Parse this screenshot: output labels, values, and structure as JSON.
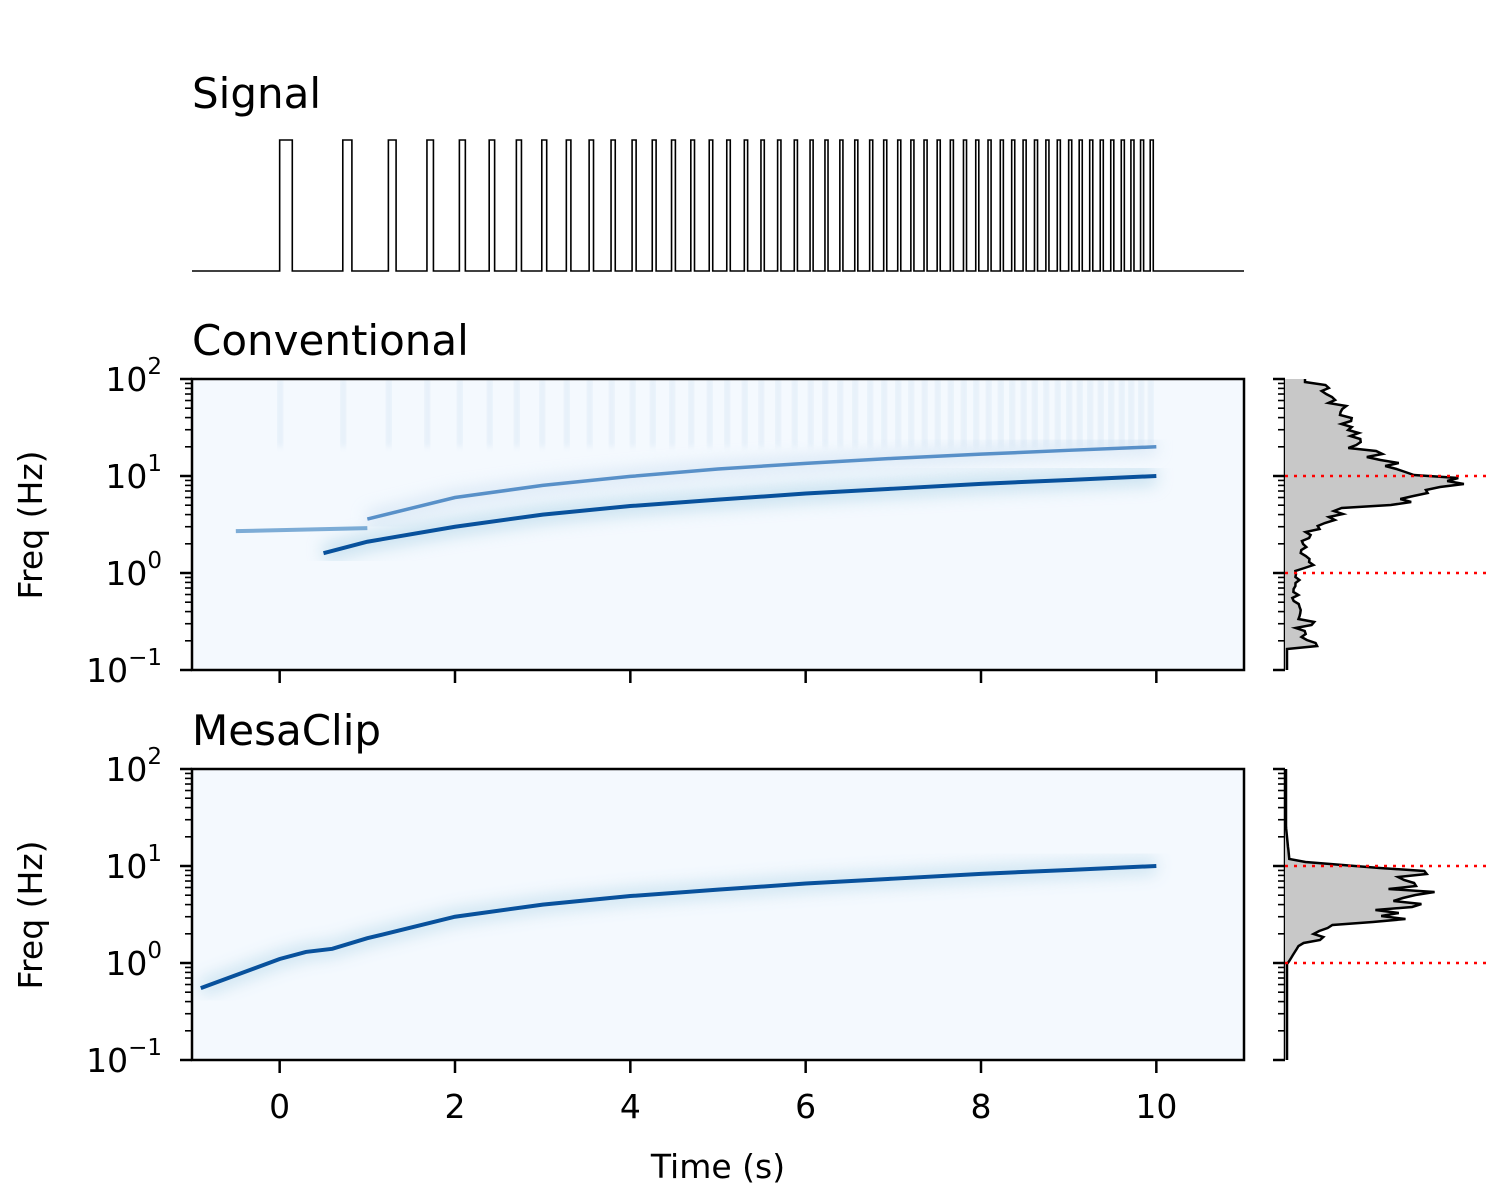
{
  "chart_data": [
    {
      "type": "line",
      "panel": "signal",
      "title": "Signal",
      "description_of_series": "binary pulse train, pulses of decreasing period from t=0 to t=10 s (chirp from ~1.4 Hz to ~10 Hz)",
      "x_range": [
        -1,
        11
      ],
      "y_range": [
        0,
        1
      ],
      "pulse_times_s": [
        0.0,
        0.72,
        1.24,
        1.68,
        2.05,
        2.39,
        2.7,
        2.99,
        3.27,
        3.53,
        3.78,
        4.02,
        4.25,
        4.47,
        4.69,
        4.9,
        5.1,
        5.3,
        5.49,
        5.68,
        5.87,
        6.05,
        6.22,
        6.39,
        6.56,
        6.73,
        6.89,
        7.05,
        7.2,
        7.35,
        7.5,
        7.65,
        7.8,
        7.94,
        8.08,
        8.22,
        8.35,
        8.48,
        8.61,
        8.74,
        8.87,
        9.0,
        9.12,
        9.24,
        9.36,
        9.48,
        9.6,
        9.71,
        9.82,
        9.93
      ]
    },
    {
      "type": "heatmap",
      "panel": "conventional",
      "title": "Conventional",
      "xlabel": "",
      "ylabel": "Freq (Hz)",
      "x_range": [
        -1,
        11
      ],
      "y_range": [
        0.1,
        100
      ],
      "y_scale": "log",
      "colormap": "Blues",
      "ridge_fundamental": {
        "t": [
          0.5,
          1,
          2,
          3,
          4,
          5,
          6,
          7,
          8,
          9,
          10
        ],
        "f": [
          1.6,
          2.1,
          3.0,
          4.0,
          4.9,
          5.7,
          6.6,
          7.4,
          8.3,
          9.1,
          10.0
        ]
      },
      "ridge_harmonic": {
        "t": [
          1,
          2,
          3,
          4,
          5,
          6,
          7,
          8,
          9,
          10
        ],
        "f": [
          3.6,
          6.0,
          8.0,
          9.9,
          11.8,
          13.5,
          15.2,
          16.8,
          18.4,
          20.0
        ]
      },
      "marginal": {
        "dotted_lines_hz": [
          1,
          10
        ],
        "dotted_color": "#ff0000"
      }
    },
    {
      "type": "heatmap",
      "panel": "mesaclip",
      "title": "MesaClip",
      "xlabel": "Time (s)",
      "ylabel": "Freq (Hz)",
      "x_range": [
        -1,
        11
      ],
      "y_range": [
        0.1,
        100
      ],
      "y_scale": "log",
      "colormap": "Blues",
      "ridge_fundamental": {
        "t": [
          -0.9,
          0,
          0.3,
          0.6,
          1,
          2,
          3,
          4,
          5,
          6,
          7,
          8,
          9,
          10
        ],
        "f": [
          0.55,
          1.1,
          1.3,
          1.4,
          1.8,
          3.0,
          4.0,
          4.9,
          5.7,
          6.6,
          7.4,
          8.3,
          9.1,
          10.0
        ]
      },
      "marginal": {
        "dotted_lines_hz": [
          1,
          10
        ],
        "dotted_color": "#ff0000"
      }
    }
  ],
  "axes": {
    "x_ticks": [
      "0",
      "2",
      "4",
      "6",
      "8",
      "10"
    ],
    "y_tick_base": "10",
    "y_tick_exponents": [
      "−1",
      "0",
      "1",
      "2"
    ]
  },
  "colors": {
    "heat_background": "#f4f9fe",
    "heat_ridge": "#08519c",
    "marginal_fill": "#c8c8c8",
    "line": "#000000"
  }
}
